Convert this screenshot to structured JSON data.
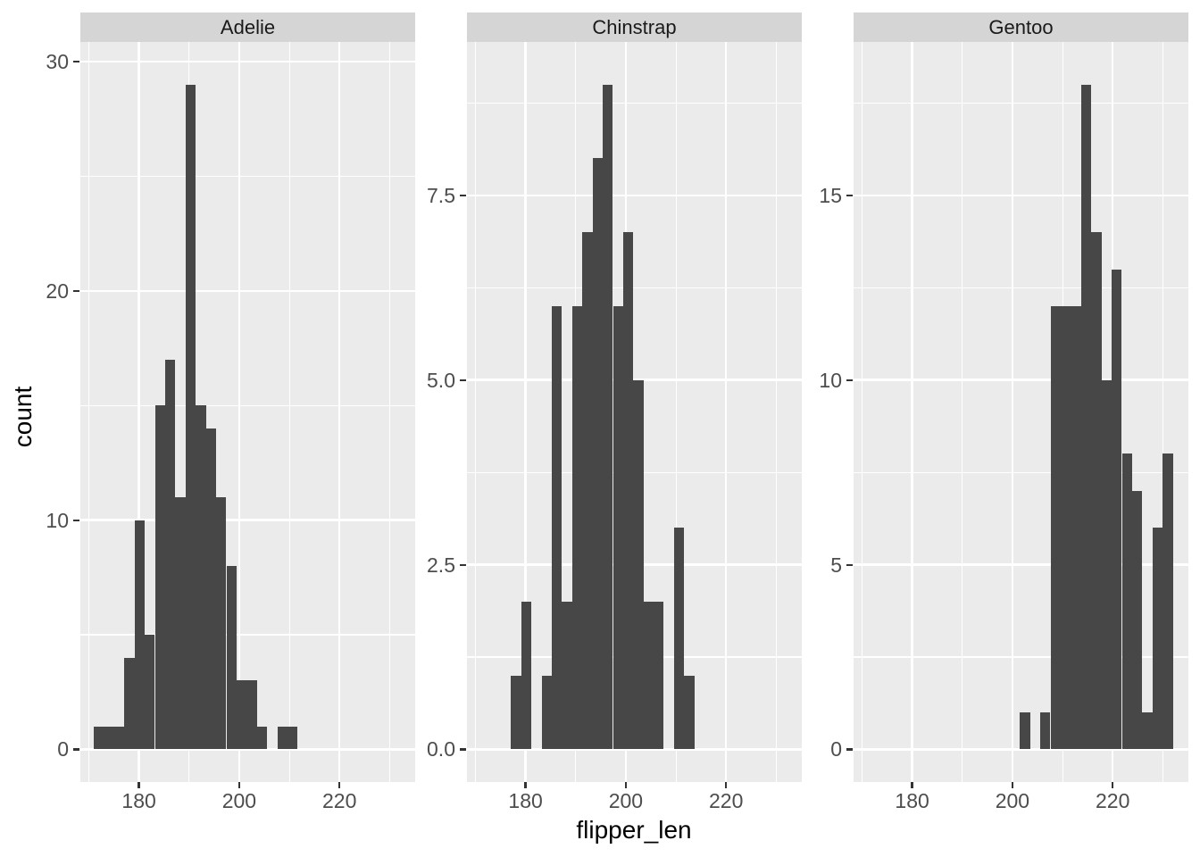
{
  "axes": {
    "x_title": "flipper_len",
    "y_title": "count",
    "x_major_ticks": [
      {
        "value": 180,
        "label": "180"
      },
      {
        "value": 200,
        "label": "200"
      },
      {
        "value": 220,
        "label": "220"
      }
    ],
    "x_minor_ticks": [
      170,
      190,
      210,
      230
    ]
  },
  "colors": {
    "bar": "#474747",
    "panel_bg": "#ebebeb",
    "strip_bg": "#d5d5d5",
    "grid": "#ffffff",
    "tick_mark": "#333333",
    "tick_label": "#4d4d4d",
    "title_text": "#000000",
    "strip_text": "#1a1a1a",
    "page_bg": "#ffffff"
  },
  "chart_data": {
    "type": "bar",
    "subtype": "faceted-histogram",
    "x_field": "flipper_len",
    "y_field": "count",
    "bin_width": 2.0345,
    "bin_origin": 170.98,
    "x_axis_range": [
      168.4,
      235.1
    ],
    "grid": "on",
    "facets": [
      {
        "label": "Adelie",
        "y_axis_range": [
          -1.45,
          30.9
        ],
        "y_major_ticks": [
          {
            "value": 0,
            "label": "0"
          },
          {
            "value": 10,
            "label": "10"
          },
          {
            "value": 20,
            "label": "20"
          },
          {
            "value": 30,
            "label": "30"
          }
        ],
        "y_minor_ticks": [
          5,
          15,
          25
        ],
        "bars": [
          [
            171.0,
            1
          ],
          [
            173.0,
            1
          ],
          [
            175.1,
            1
          ],
          [
            177.1,
            4
          ],
          [
            179.1,
            10
          ],
          [
            181.2,
            5
          ],
          [
            183.2,
            15
          ],
          [
            185.2,
            17
          ],
          [
            187.3,
            11
          ],
          [
            189.3,
            29
          ],
          [
            191.3,
            15
          ],
          [
            193.4,
            14
          ],
          [
            195.4,
            11
          ],
          [
            197.4,
            8
          ],
          [
            199.5,
            3
          ],
          [
            201.5,
            3
          ],
          [
            203.5,
            1
          ],
          [
            207.6,
            1
          ],
          [
            209.6,
            1
          ]
        ]
      },
      {
        "label": "Chinstrap",
        "y_axis_range": [
          -0.45,
          9.45
        ],
        "y_major_ticks": [
          {
            "value": 0,
            "label": "0.0"
          },
          {
            "value": 2.5,
            "label": "2.5"
          },
          {
            "value": 5,
            "label": "5.0"
          },
          {
            "value": 7.5,
            "label": "7.5"
          }
        ],
        "y_minor_ticks": [
          1.25,
          3.75,
          6.25,
          8.75
        ],
        "bars": [
          [
            177.1,
            1
          ],
          [
            179.1,
            2
          ],
          [
            183.2,
            1
          ],
          [
            185.2,
            6
          ],
          [
            187.3,
            2
          ],
          [
            189.3,
            6
          ],
          [
            191.3,
            7
          ],
          [
            193.4,
            8
          ],
          [
            195.4,
            9
          ],
          [
            197.4,
            6
          ],
          [
            199.5,
            7
          ],
          [
            201.5,
            5
          ],
          [
            203.5,
            2
          ],
          [
            205.6,
            2
          ],
          [
            209.6,
            3
          ],
          [
            211.7,
            1
          ]
        ]
      },
      {
        "label": "Gentoo",
        "y_axis_range": [
          -0.9,
          18.9
        ],
        "y_major_ticks": [
          {
            "value": 0,
            "label": "0"
          },
          {
            "value": 5,
            "label": "5"
          },
          {
            "value": 10,
            "label": "10"
          },
          {
            "value": 15,
            "label": "15"
          }
        ],
        "y_minor_ticks": [
          2.5,
          7.5,
          12.5,
          17.5
        ],
        "bars": [
          [
            201.5,
            1
          ],
          [
            205.6,
            1
          ],
          [
            207.6,
            12
          ],
          [
            209.6,
            12
          ],
          [
            211.7,
            12
          ],
          [
            213.7,
            18
          ],
          [
            215.7,
            14
          ],
          [
            217.8,
            10
          ],
          [
            219.8,
            13
          ],
          [
            221.8,
            8
          ],
          [
            223.8,
            7
          ],
          [
            225.9,
            1
          ],
          [
            227.9,
            6
          ],
          [
            229.9,
            8
          ]
        ]
      }
    ]
  }
}
